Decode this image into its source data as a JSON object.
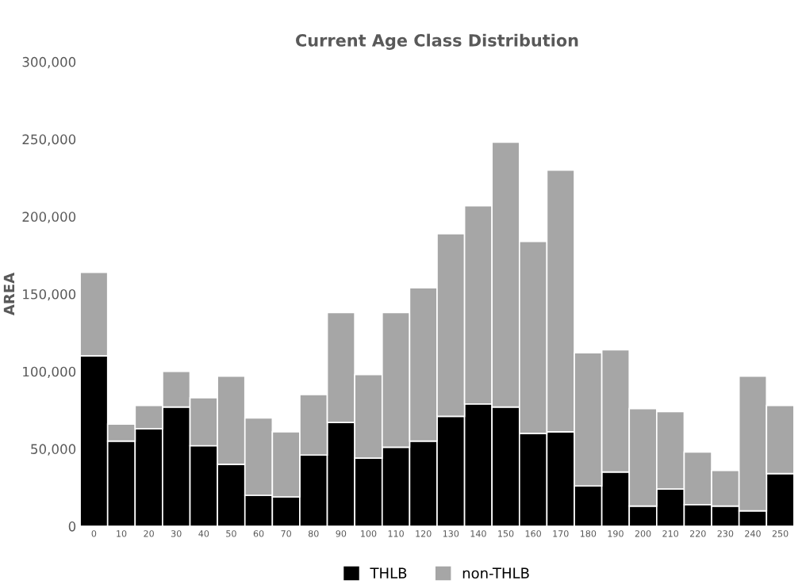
{
  "chart_data": {
    "type": "bar",
    "title": "Current Age Class Distribution",
    "ylabel": "AREA",
    "stacked": true,
    "legend": "bottom",
    "grid": false,
    "categories": [
      "0",
      "10",
      "20",
      "30",
      "40",
      "50",
      "60",
      "70",
      "80",
      "90",
      "100",
      "110",
      "120",
      "130",
      "140",
      "150",
      "160",
      "170",
      "180",
      "190",
      "200",
      "210",
      "220",
      "230",
      "240",
      "250"
    ],
    "series": [
      {
        "name": "THLB",
        "color": "#000000",
        "values": [
          110000,
          55000,
          63000,
          77000,
          52000,
          40000,
          20000,
          19000,
          46000,
          67000,
          44000,
          51000,
          55000,
          71000,
          79000,
          77000,
          60000,
          61000,
          26000,
          35000,
          13000,
          24000,
          14000,
          13000,
          10000,
          34000
        ]
      },
      {
        "name": "non-THLB",
        "color": "#a6a6a6",
        "values": [
          54000,
          11000,
          15000,
          23000,
          31000,
          57000,
          50000,
          42000,
          39000,
          71000,
          54000,
          87000,
          99000,
          118000,
          128000,
          171000,
          124000,
          169000,
          86000,
          79000,
          63000,
          50000,
          34000,
          23000,
          87000,
          44000
        ]
      }
    ],
    "ylim": [
      0,
      300000
    ],
    "yticks": [
      {
        "value": 0,
        "label": "0"
      },
      {
        "value": 50000,
        "label": "50,000"
      },
      {
        "value": 100000,
        "label": "100,000"
      },
      {
        "value": 150000,
        "label": "150,000"
      },
      {
        "value": 200000,
        "label": "200,000"
      },
      {
        "value": 250000,
        "label": "250,000"
      },
      {
        "value": 300000,
        "label": "300,000"
      }
    ]
  }
}
